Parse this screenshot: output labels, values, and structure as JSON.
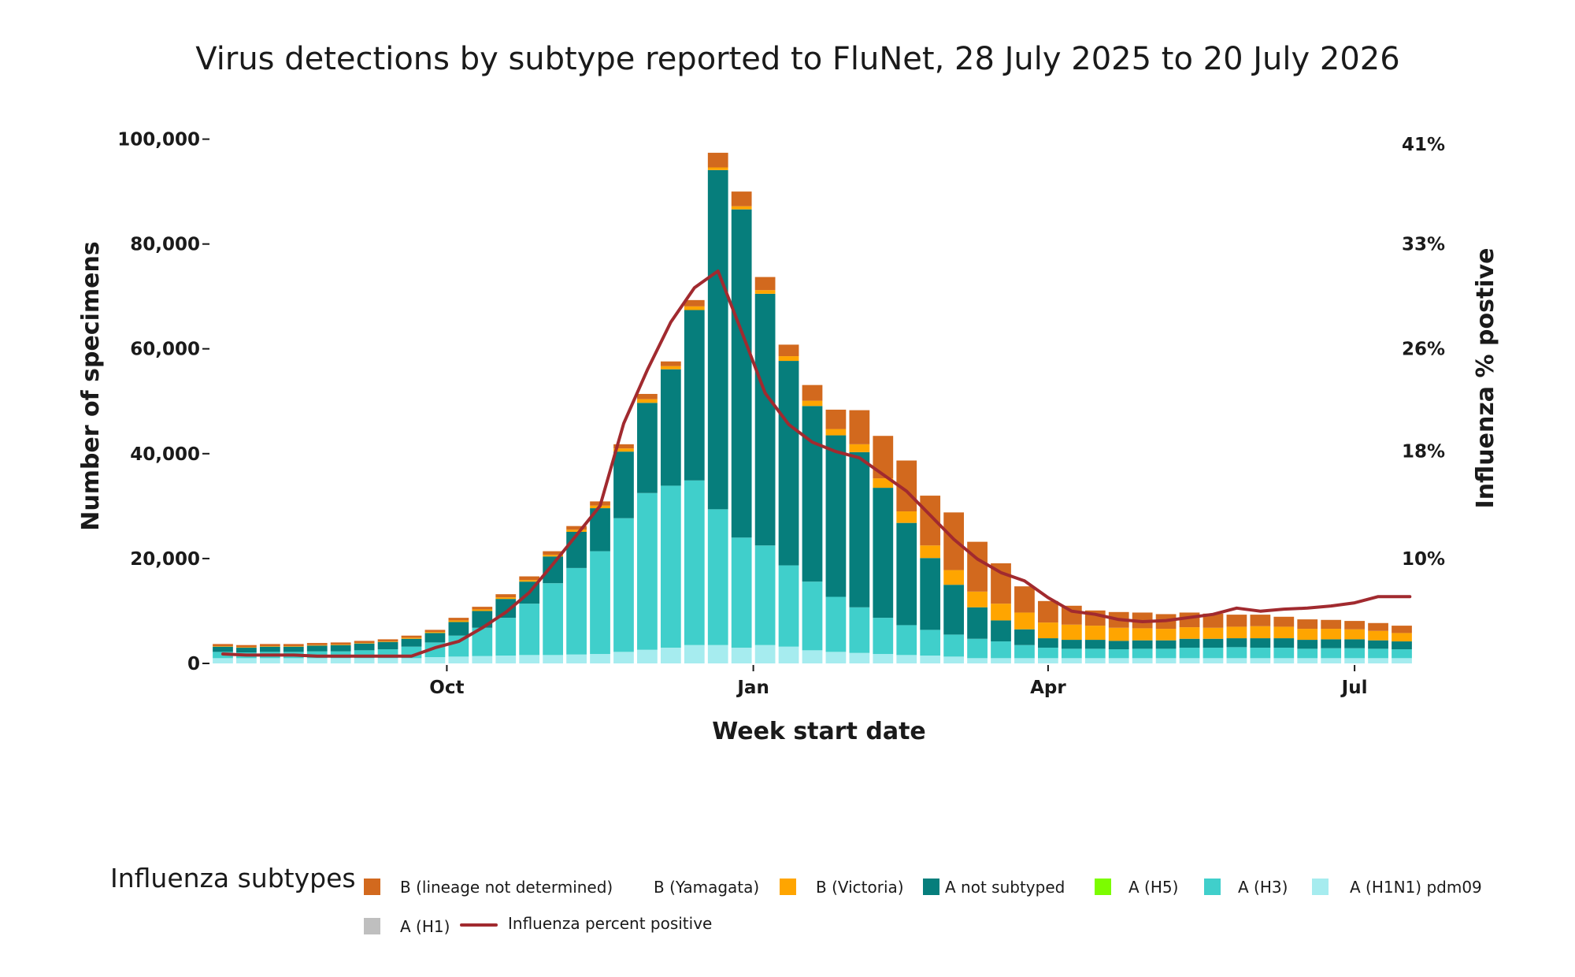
{
  "colors": {
    "b_lnd": "#d2691e",
    "b_yam": "#e8e8e8",
    "b_vic": "#ffa500",
    "a_ns": "#067e7c",
    "a_h5": "#7cfc00",
    "a_h3": "#40cfcb",
    "a_h1n1": "#a6ecef",
    "a_h1": "#bfbfbf",
    "pct_line": "#a12a2f"
  },
  "chart_data": {
    "type": "bar",
    "title": "Virus detections by subtype reported to FluNet, 28 July 2025 to 20 July 2026",
    "xlabel": "Week start date",
    "ylabel": "Number of specimens",
    "y2label": "Influenza % postive",
    "ylim": [
      0,
      107000
    ],
    "y_ticks": [
      {
        "value": 0,
        "label": "0"
      },
      {
        "value": 20000,
        "label": "20,000"
      },
      {
        "value": 40000,
        "label": "40,000"
      },
      {
        "value": 60000,
        "label": "60,000"
      },
      {
        "value": 80000,
        "label": "80,000"
      },
      {
        "value": 100000,
        "label": "100,000"
      }
    ],
    "y2_ticks": [
      {
        "value": 20000,
        "label": "10%"
      },
      {
        "value": 40500,
        "label": "18%"
      },
      {
        "value": 60000,
        "label": "26%"
      },
      {
        "value": 80000,
        "label": "33%"
      },
      {
        "value": 99000,
        "label": "41%"
      }
    ],
    "x_ticks": [
      {
        "week_index": 9.5,
        "label": "Oct"
      },
      {
        "week_index": 22.5,
        "label": "Jan"
      },
      {
        "week_index": 35,
        "label": "Apr"
      },
      {
        "week_index": 48,
        "label": "Jul"
      }
    ],
    "weeks": [
      "2025-07-28",
      "2025-08-04",
      "2025-08-11",
      "2025-08-18",
      "2025-08-25",
      "2025-09-01",
      "2025-09-08",
      "2025-09-15",
      "2025-09-22",
      "2025-09-29",
      "2025-10-06",
      "2025-10-13",
      "2025-10-20",
      "2025-10-27",
      "2025-11-03",
      "2025-11-10",
      "2025-11-17",
      "2025-11-24",
      "2025-12-01",
      "2025-12-08",
      "2025-12-15",
      "2025-12-22",
      "2025-12-29",
      "2026-01-05",
      "2026-01-12",
      "2026-01-19",
      "2026-01-26",
      "2026-02-02",
      "2026-02-09",
      "2026-02-16",
      "2026-02-23",
      "2026-03-02",
      "2026-03-09",
      "2026-03-16",
      "2026-03-23",
      "2026-03-30",
      "2026-04-06",
      "2026-04-13",
      "2026-04-20",
      "2026-04-27",
      "2026-05-04",
      "2026-05-11",
      "2026-05-18",
      "2026-05-25",
      "2026-06-01",
      "2026-06-08",
      "2026-06-15",
      "2026-06-22",
      "2026-06-29",
      "2026-07-06",
      "2026-07-13"
    ],
    "series": [
      {
        "name": "A (H1N1) pdm09",
        "key": "a_h1n1",
        "values": [
          1000,
          1000,
          1000,
          1000,
          1000,
          1000,
          1000,
          1000,
          1000,
          1200,
          1300,
          1400,
          1500,
          1600,
          1600,
          1700,
          1800,
          2200,
          2600,
          3000,
          3500,
          3500,
          3000,
          3500,
          3200,
          2500,
          2200,
          2000,
          1800,
          1600,
          1500,
          1300,
          1000,
          1000,
          1000,
          1000,
          1000,
          1000,
          1000,
          1000,
          1000,
          1000,
          1000,
          1000,
          1000,
          1000,
          1000,
          1000,
          1000,
          1000,
          1000
        ]
      },
      {
        "name": "A (H3)",
        "key": "a_h3",
        "values": [
          1200,
          1100,
          1200,
          1200,
          1300,
          1300,
          1500,
          1700,
          2200,
          2800,
          4000,
          5400,
          7200,
          9800,
          13700,
          16500,
          19600,
          25500,
          29900,
          30900,
          31400,
          25900,
          21000,
          19000,
          15500,
          13100,
          10500,
          8700,
          6900,
          5700,
          4900,
          4200,
          3700,
          3200,
          2500,
          2000,
          1800,
          1800,
          1700,
          1800,
          1800,
          2000,
          2000,
          2100,
          2000,
          2000,
          1800,
          1900,
          1900,
          1800,
          1700
        ]
      },
      {
        "name": "A not subtyped",
        "key": "a_ns",
        "values": [
          1000,
          900,
          1000,
          1000,
          1100,
          1200,
          1300,
          1400,
          1500,
          1800,
          2600,
          3200,
          3600,
          4200,
          5100,
          6900,
          8200,
          12700,
          17200,
          22200,
          32500,
          64700,
          62600,
          48000,
          39000,
          33500,
          30800,
          29600,
          24800,
          19500,
          13700,
          9500,
          6000,
          4000,
          3000,
          1800,
          1700,
          1700,
          1600,
          1600,
          1600,
          1700,
          1700,
          1700,
          1800,
          1800,
          1700,
          1700,
          1700,
          1600,
          1500
        ]
      },
      {
        "name": "B (Victoria)",
        "key": "b_vic",
        "values": [
          100,
          100,
          100,
          100,
          100,
          100,
          100,
          100,
          200,
          200,
          300,
          300,
          300,
          300,
          300,
          400,
          500,
          600,
          700,
          600,
          700,
          500,
          600,
          700,
          900,
          1000,
          1200,
          1500,
          1800,
          2200,
          2400,
          2800,
          3000,
          3200,
          3200,
          3000,
          2900,
          2700,
          2500,
          2300,
          2200,
          2200,
          2100,
          2200,
          2300,
          2200,
          2100,
          2000,
          1900,
          1800,
          1600
        ]
      },
      {
        "name": "B (lineage not determined)",
        "key": "b_lnd",
        "values": [
          400,
          400,
          400,
          400,
          400,
          400,
          400,
          400,
          400,
          400,
          500,
          500,
          600,
          700,
          700,
          700,
          800,
          800,
          1000,
          900,
          1200,
          2800,
          2800,
          2500,
          2200,
          3000,
          3700,
          6500,
          8100,
          9700,
          9500,
          11000,
          9500,
          7700,
          5000,
          4100,
          3600,
          2900,
          3000,
          3000,
          2800,
          2800,
          2700,
          2300,
          2200,
          1900,
          1800,
          1700,
          1600,
          1500,
          1400
        ]
      },
      {
        "name": "B (Yamagata)",
        "key": "b_yam",
        "values": [
          0,
          0,
          0,
          0,
          0,
          0,
          0,
          0,
          0,
          0,
          0,
          0,
          0,
          0,
          0,
          0,
          0,
          0,
          0,
          0,
          0,
          0,
          0,
          0,
          0,
          0,
          0,
          0,
          0,
          0,
          0,
          0,
          0,
          0,
          0,
          0,
          0,
          0,
          0,
          0,
          0,
          0,
          0,
          0,
          0,
          0,
          0,
          0,
          0,
          0,
          0
        ]
      },
      {
        "name": "A (H5)",
        "key": "a_h5",
        "values": [
          0,
          0,
          0,
          0,
          0,
          0,
          0,
          0,
          0,
          0,
          0,
          0,
          0,
          0,
          0,
          0,
          0,
          0,
          0,
          0,
          0,
          0,
          0,
          0,
          0,
          0,
          0,
          0,
          0,
          0,
          0,
          0,
          0,
          0,
          0,
          0,
          0,
          0,
          0,
          0,
          0,
          0,
          0,
          0,
          0,
          0,
          0,
          0,
          0,
          0,
          0
        ]
      },
      {
        "name": "A (H1)",
        "key": "a_h1",
        "values": [
          0,
          0,
          0,
          0,
          0,
          0,
          0,
          0,
          0,
          0,
          0,
          0,
          0,
          0,
          0,
          0,
          0,
          0,
          0,
          0,
          0,
          0,
          0,
          0,
          0,
          0,
          0,
          0,
          0,
          0,
          0,
          0,
          0,
          0,
          0,
          0,
          0,
          0,
          0,
          0,
          0,
          0,
          0,
          0,
          0,
          0,
          0,
          0,
          0,
          0,
          0
        ]
      }
    ],
    "line": {
      "name": "Influenza percent positive",
      "key": "pct_line",
      "values_percent": [
        0.3,
        0.2,
        0.2,
        0.2,
        0.1,
        0.1,
        0.1,
        0.1,
        0.1,
        0.9,
        1.5,
        2.8,
        4.3,
        6.2,
        8.9,
        11.7,
        14.5,
        22.4,
        27.5,
        32.1,
        35.4,
        37.0,
        31.2,
        25.3,
        22.3,
        20.6,
        19.7,
        19.1,
        17.5,
        15.9,
        13.6,
        11.3,
        9.4,
        8.1,
        7.3,
        5.7,
        4.4,
        4.1,
        3.6,
        3.4,
        3.5,
        3.8,
        4.1,
        4.7,
        4.4,
        4.6,
        4.7,
        4.9,
        5.2,
        5.8,
        5.8
      ]
    }
  },
  "legend": {
    "title": "Influenza subtypes",
    "items": [
      {
        "label": "B (lineage not determined)",
        "key": "b_lnd"
      },
      {
        "label": "B (Yamagata)",
        "key": "b_yam"
      },
      {
        "label": "B (Victoria)",
        "key": "b_vic"
      },
      {
        "label": "A not subtyped",
        "key": "a_ns"
      },
      {
        "label": "A (H5)",
        "key": "a_h5"
      },
      {
        "label": "A (H3)",
        "key": "a_h3"
      },
      {
        "label": "A (H1N1) pdm09",
        "key": "a_h1n1"
      },
      {
        "label": "A (H1)",
        "key": "a_h1"
      },
      {
        "label": "Influenza percent positive",
        "key": "pct_line"
      }
    ]
  }
}
